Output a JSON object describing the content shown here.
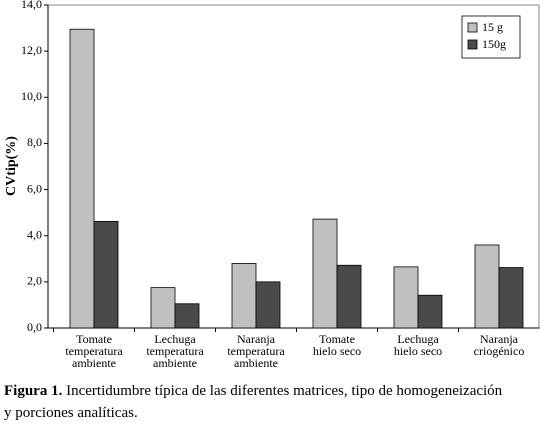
{
  "chart_data": {
    "type": "bar",
    "y_label": "CVtip(%)",
    "categories": [
      [
        "Tomate",
        "temperatura",
        "ambiente"
      ],
      [
        "Lechuga",
        "temperatura",
        "ambiente"
      ],
      [
        "Naranja",
        "temperatura",
        "ambiente"
      ],
      [
        "Tomate",
        "hielo seco"
      ],
      [
        "Lechuga",
        "hielo seco"
      ],
      [
        "Naranja",
        "criogénico"
      ]
    ],
    "series": [
      {
        "name": "15 g",
        "color": "#c0c0c0",
        "values": [
          12.95,
          1.75,
          2.8,
          4.72,
          2.65,
          3.6
        ]
      },
      {
        "name": "150g",
        "color": "#4a4a4a",
        "values": [
          4.62,
          1.05,
          2.0,
          2.72,
          1.42,
          2.62
        ]
      }
    ],
    "ylim": [
      0,
      14
    ],
    "yticks": [
      {
        "value": 0,
        "label": "0,0"
      },
      {
        "value": 2,
        "label": "2,0"
      },
      {
        "value": 4,
        "label": "4,0"
      },
      {
        "value": 6,
        "label": "6,0"
      },
      {
        "value": 8,
        "label": "8,0"
      },
      {
        "value": 10,
        "label": "10,0"
      },
      {
        "value": 12,
        "label": "12,0"
      },
      {
        "value": 14,
        "label": "14,0"
      }
    ],
    "legend": "top-right"
  },
  "caption": {
    "label": "Figura 1.",
    "lines": [
      "Incertidumbre típica de las diferentes matrices, tipo de homogeneización",
      "y porciones analíticas."
    ]
  }
}
